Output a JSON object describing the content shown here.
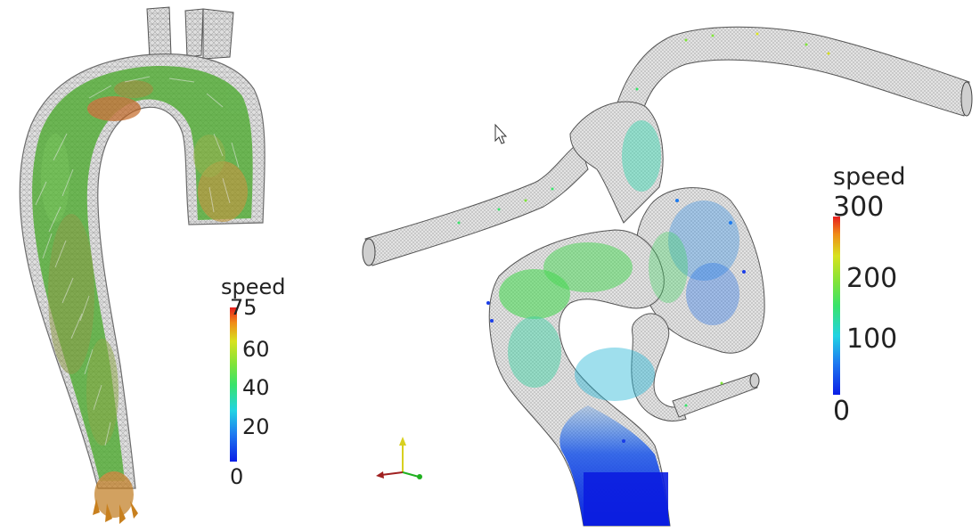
{
  "left_legend": {
    "title": "speed",
    "ticks": [
      "75",
      "60",
      "40",
      "20",
      "0"
    ],
    "range": [
      0,
      75
    ]
  },
  "right_legend": {
    "title": "speed",
    "ticks": [
      "300",
      "200",
      "100",
      "0"
    ],
    "range": [
      0,
      300
    ]
  },
  "colormap": [
    "#0a1ee6",
    "#1e7bf0",
    "#21d3e3",
    "#39e36a",
    "#7fe33a",
    "#d8e21e",
    "#f08c18",
    "#e61e1e"
  ],
  "icons": {
    "cursor": "mouse-pointer-icon",
    "axes": "orientation-axes-icon"
  }
}
